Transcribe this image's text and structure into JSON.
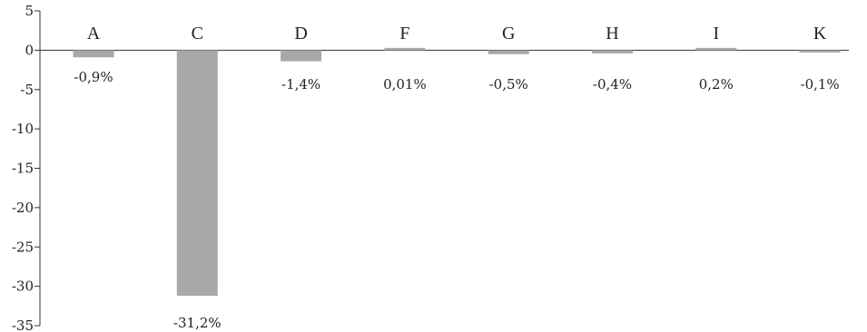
{
  "chart_data": {
    "type": "bar",
    "categories": [
      "A",
      "C",
      "D",
      "F",
      "G",
      "H",
      "I",
      "K"
    ],
    "values": [
      -0.9,
      -31.2,
      -1.4,
      0.01,
      -0.5,
      -0.4,
      0.2,
      -0.1
    ],
    "data_labels": [
      "-0,9%",
      "-31,2%",
      "-1,4%",
      "0,01%",
      "-0,5%",
      "-0,4%",
      "0,2%",
      "-0,1%"
    ],
    "y_ticks": [
      5,
      0,
      -5,
      -10,
      -15,
      -20,
      -25,
      -30,
      -35
    ],
    "y_tick_labels": [
      "5",
      "0",
      "-5",
      "-10",
      "-15",
      "-20",
      "-25",
      "-30",
      "-35"
    ],
    "ylim": [
      -35,
      5
    ],
    "title": "",
    "xlabel": "",
    "ylabel": "",
    "grid": false,
    "bar_color": "#a7a9a9",
    "axis_color": "#333333"
  }
}
